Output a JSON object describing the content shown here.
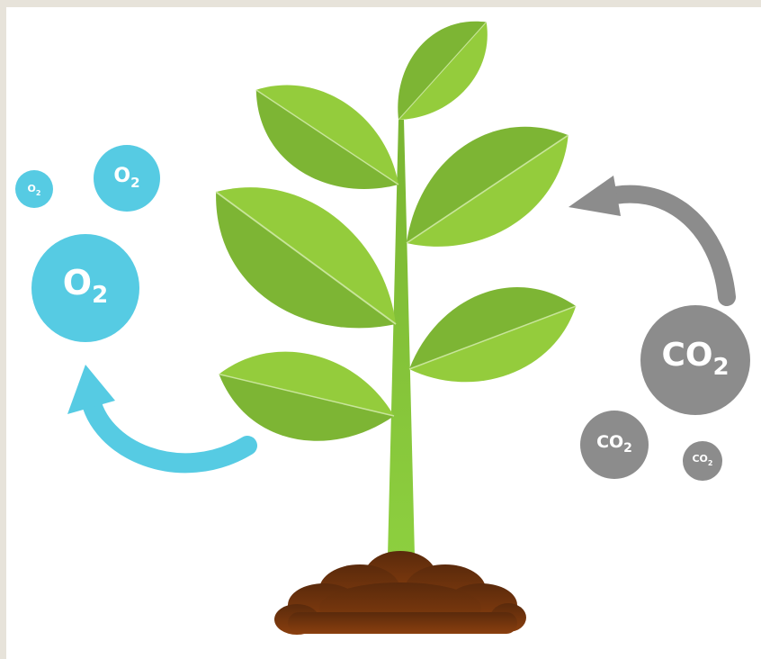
{
  "oxygen": [
    {
      "symbol": "O",
      "subscript": "2"
    },
    {
      "symbol": "O",
      "subscript": "2"
    },
    {
      "symbol": "O",
      "subscript": "2"
    }
  ],
  "carbon_dioxide": [
    {
      "symbol": "CO",
      "subscript": "2"
    },
    {
      "symbol": "CO",
      "subscript": "2"
    },
    {
      "symbol": "CO",
      "subscript": "2"
    }
  ]
}
